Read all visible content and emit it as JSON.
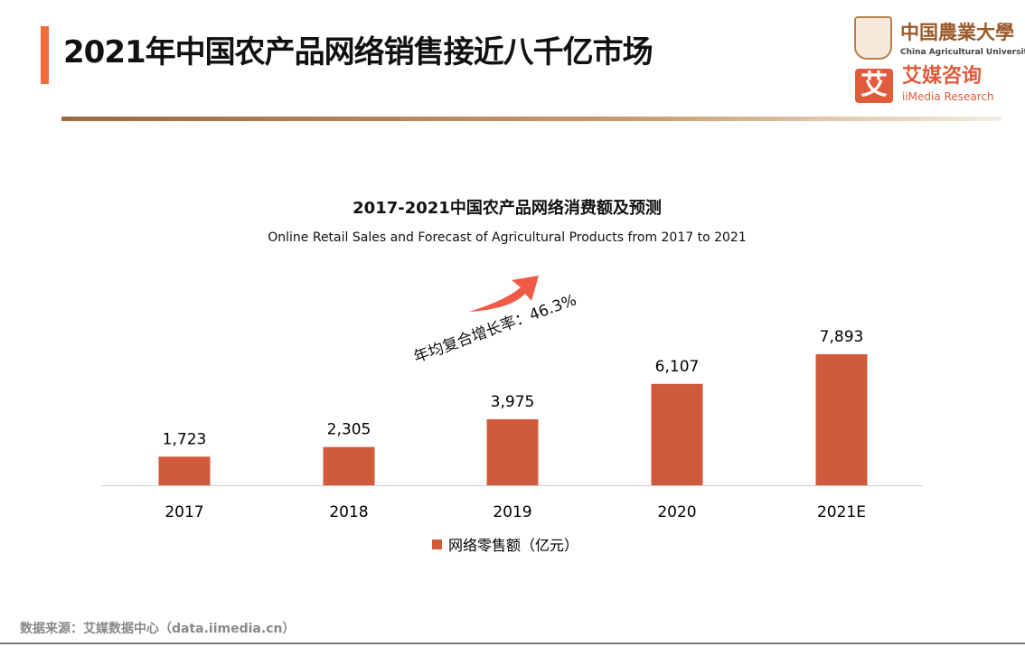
{
  "header": {
    "title": "2021年中国农产品网络销售接近八千亿市场",
    "logos": {
      "cau_cn": "中国農業大學",
      "cau_en": "China Agricultural University",
      "iimedia_mark": "艾",
      "iimedia_cn": "艾媒咨询",
      "iimedia_en": "iiMedia Research"
    }
  },
  "colors": {
    "accent": "#f06a3a",
    "bar": "#d05a3c",
    "arrow": "#f05a44"
  },
  "chart_data": {
    "type": "bar",
    "title": "2017-2021中国农产品网络消费额及预测",
    "subtitle": "Online Retail Sales and Forecast of Agricultural Products from 2017 to 2021",
    "categories": [
      "2017",
      "2018",
      "2019",
      "2020",
      "2021E"
    ],
    "series": [
      {
        "name": "网络零售额（亿元）",
        "values": [
          1723,
          2305,
          3975,
          6107,
          7893
        ]
      }
    ],
    "value_labels": [
      "1,723",
      "2,305",
      "3,975",
      "6,107",
      "7,893"
    ],
    "annotation": "年均复合增长率：46.3%",
    "ylim": [
      0,
      8000
    ],
    "grid": false,
    "legend": "bottom"
  },
  "footer": {
    "source": "数据来源：艾媒数据中心（data.iimedia.cn）"
  }
}
